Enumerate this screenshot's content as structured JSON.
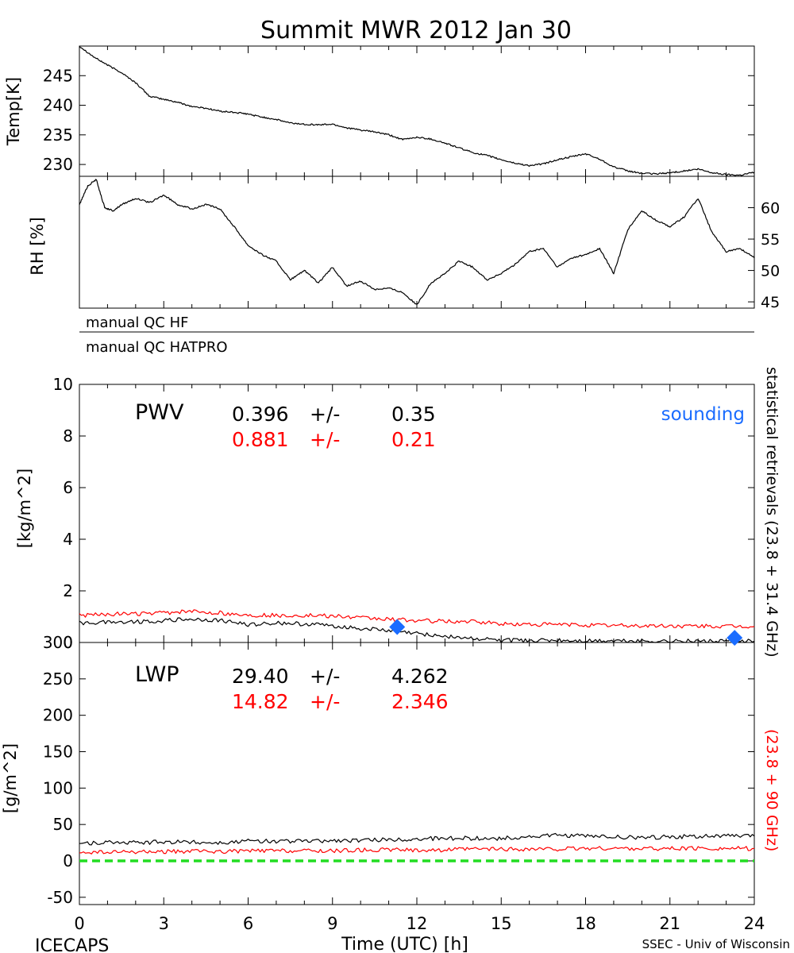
{
  "chart_data": [
    {
      "type": "line",
      "title": "Summit MWR 2012 Jan 30",
      "ylabel": "Temp[K]",
      "xlim": [
        0,
        24
      ],
      "ylim": [
        228,
        250
      ],
      "yticks": [
        230,
        235,
        240,
        245
      ],
      "color": "#000000",
      "series": [
        {
          "x": [
            0,
            0.5,
            1,
            1.5,
            2,
            2.5,
            3,
            3.5,
            4,
            4.5,
            5,
            5.5,
            6,
            6.5,
            7,
            7.5,
            8,
            8.5,
            9,
            9.5,
            10,
            10.5,
            11,
            11.5,
            12,
            12.5,
            13,
            13.5,
            14,
            14.5,
            15,
            15.5,
            16,
            16.5,
            17,
            17.5,
            18,
            18.5,
            19,
            19.5,
            20,
            20.5,
            21,
            21.5,
            22,
            22.5,
            23,
            23.5,
            24
          ],
          "values": [
            250,
            248.2,
            246.8,
            245.5,
            243.8,
            241.5,
            241,
            240.5,
            239.8,
            239.5,
            239,
            238.8,
            238.5,
            238,
            237.6,
            237,
            236.8,
            236.7,
            236.8,
            236.2,
            235.8,
            235.5,
            235,
            234.2,
            234.6,
            234.3,
            233.6,
            232.8,
            232,
            231.5,
            230.8,
            230.2,
            229.8,
            230.1,
            230.8,
            231.3,
            231.8,
            230.9,
            229.6,
            228.9,
            228.5,
            228.4,
            228.6,
            228.9,
            229.2,
            228.6,
            228.3,
            228.2,
            228.7
          ]
        }
      ]
    },
    {
      "type": "line",
      "ylabel": "RH [%]",
      "xlim": [
        0,
        24
      ],
      "ylim": [
        44,
        65
      ],
      "yticks": [
        45,
        50,
        55,
        60
      ],
      "color": "#000000",
      "series": [
        {
          "x": [
            0,
            0.3,
            0.6,
            0.9,
            1.2,
            1.5,
            2,
            2.5,
            3,
            3.5,
            4,
            4.5,
            5,
            5.5,
            6,
            6.5,
            7,
            7.5,
            8,
            8.5,
            9,
            9.5,
            10,
            10.5,
            11,
            11.5,
            12,
            12.5,
            13,
            13.5,
            14,
            14.5,
            15,
            15.5,
            16,
            16.5,
            17,
            17.5,
            18,
            18.5,
            19,
            19.5,
            20,
            20.5,
            21,
            21.5,
            22,
            22.5,
            23,
            23.5,
            24
          ],
          "values": [
            60.5,
            63.5,
            64.5,
            60,
            59.5,
            60.5,
            61.5,
            60.8,
            62,
            60.5,
            59.8,
            60.5,
            59.8,
            57,
            54,
            52.5,
            51.5,
            48.5,
            50,
            48,
            50.5,
            47.5,
            48.3,
            47,
            47.2,
            46.5,
            44.5,
            48,
            49.5,
            51.5,
            50.5,
            48.5,
            49.5,
            51,
            53,
            53.5,
            50.5,
            52,
            52.5,
            53.5,
            49.5,
            56.5,
            59.5,
            58,
            57,
            58.5,
            61.5,
            56,
            53,
            53.5,
            52
          ]
        }
      ]
    },
    {
      "type": "line",
      "ylabel": "[kg/m^2]",
      "xlim": [
        0,
        24
      ],
      "ylim": [
        0,
        10
      ],
      "yticks": [
        0,
        2,
        4,
        6,
        8,
        10
      ],
      "series": [
        {
          "color": "#000000",
          "x": [
            0,
            1,
            2,
            3,
            4,
            5,
            6,
            7,
            8,
            9,
            10,
            11,
            12,
            13,
            14,
            15,
            16,
            17,
            18,
            19,
            20,
            21,
            22,
            23,
            24
          ],
          "values": [
            0.75,
            0.8,
            0.8,
            0.85,
            0.9,
            0.85,
            0.7,
            0.75,
            0.72,
            0.65,
            0.55,
            0.45,
            0.35,
            0.25,
            0.15,
            0.08,
            0.07,
            0.08,
            0.06,
            0.07,
            0.06,
            0.06,
            0.05,
            0.05,
            0.05
          ]
        },
        {
          "color": "#ff0000",
          "x": [
            0,
            1,
            2,
            3,
            4,
            5,
            6,
            7,
            8,
            9,
            10,
            11,
            12,
            13,
            14,
            15,
            16,
            17,
            18,
            19,
            20,
            21,
            22,
            23,
            24
          ],
          "values": [
            1.05,
            1.1,
            1.1,
            1.15,
            1.2,
            1.15,
            1.05,
            1.05,
            1.05,
            1.02,
            0.95,
            0.9,
            0.85,
            0.82,
            0.8,
            0.72,
            0.7,
            0.7,
            0.68,
            0.66,
            0.65,
            0.64,
            0.63,
            0.62,
            0.62
          ]
        }
      ],
      "points": {
        "color": "#1a6cff",
        "x": [
          11.3,
          23.3
        ],
        "values": [
          0.6,
          0.18
        ]
      }
    },
    {
      "type": "line",
      "ylabel": "[g/m^2]",
      "xlim": [
        0,
        24
      ],
      "ylim": [
        -60,
        300
      ],
      "yticks": [
        -50,
        0,
        50,
        100,
        150,
        200,
        250,
        300
      ],
      "xticks": [
        0,
        3,
        6,
        9,
        12,
        15,
        18,
        21,
        24
      ],
      "xlabel": "Time (UTC) [h]",
      "series": [
        {
          "color": "#000000",
          "x": [
            0,
            1,
            2,
            3,
            4,
            5,
            6,
            7,
            8,
            9,
            10,
            11,
            12,
            13,
            14,
            15,
            16,
            17,
            18,
            19,
            20,
            21,
            22,
            23,
            24
          ],
          "values": [
            24,
            25,
            25,
            26,
            26,
            25,
            27,
            27,
            27,
            28,
            28,
            29,
            30,
            31,
            31,
            31,
            33,
            35,
            34,
            33,
            32,
            33,
            34,
            34,
            34
          ]
        },
        {
          "color": "#ff0000",
          "x": [
            0,
            1,
            2,
            3,
            4,
            5,
            6,
            7,
            8,
            9,
            10,
            11,
            12,
            13,
            14,
            15,
            16,
            17,
            18,
            19,
            20,
            21,
            22,
            23,
            24
          ],
          "values": [
            12,
            12,
            12,
            13,
            13,
            13,
            14,
            14,
            14,
            14,
            15,
            15,
            15,
            15,
            16,
            16,
            16,
            16,
            17,
            17,
            17,
            17,
            17,
            17,
            17
          ]
        },
        {
          "color": "#22dd22",
          "dashed": true,
          "x": [
            0,
            24
          ],
          "values": [
            0,
            0
          ]
        }
      ]
    }
  ],
  "labels": {
    "qc_hf": "manual QC HF",
    "qc_hatpro": "manual QC HATPRO",
    "pwv_label": "PWV",
    "pwv_black_value": "0.396",
    "pwv_black_pm": "+/-",
    "pwv_black_err": "0.35",
    "pwv_red_value": "0.881",
    "pwv_red_pm": "+/-",
    "pwv_red_err": "0.21",
    "sounding": "sounding",
    "lwp_label": "LWP",
    "lwp_black_value": "29.40",
    "lwp_black_pm": "+/-",
    "lwp_black_err": "4.262",
    "lwp_red_value": "14.82",
    "lwp_red_pm": "+/-",
    "lwp_red_err": "2.346",
    "right_black": "statistical retrievals (23.8 + 31.4 GHz)",
    "right_red": "(23.8 + 90 GHz)",
    "footer_left": "ICECAPS",
    "footer_right": "SSEC - Univ of Wisconsin"
  }
}
